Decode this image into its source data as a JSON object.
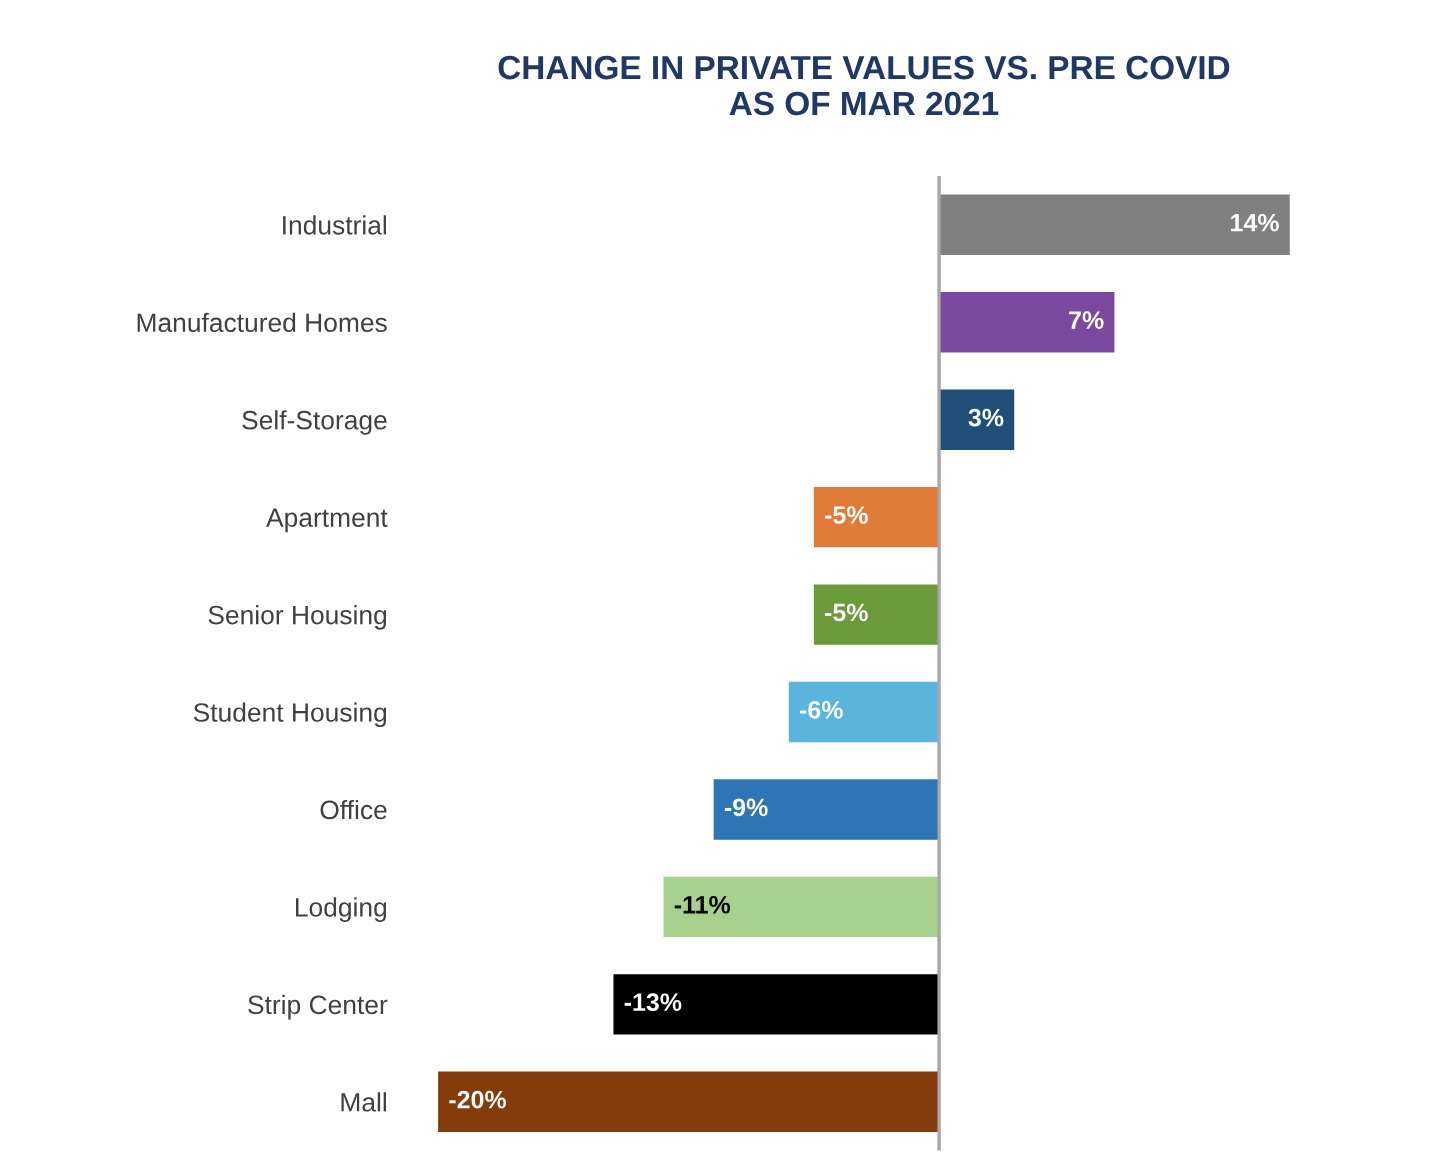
{
  "chart_data": {
    "type": "bar",
    "orientation": "horizontal",
    "title": "CHANGE IN PRIVATE VALUES VS. PRE COVID\nAS OF MAR 2021",
    "categories": [
      "Industrial",
      "Manufactured Homes",
      "Self-Storage",
      "Apartment",
      "Senior Housing",
      "Student Housing",
      "Office",
      "Lodging",
      "Strip Center",
      "Mall"
    ],
    "values": [
      14,
      7,
      3,
      -5,
      -5,
      -6,
      -9,
      -11,
      -13,
      -20
    ],
    "colors": [
      "#808080",
      "#7b4a9e",
      "#1f4e79",
      "#e07b39",
      "#6a9a3a",
      "#5ab4dc",
      "#2e75b6",
      "#a9d18e",
      "#000000",
      "#843c0c"
    ],
    "value_labels": [
      "14%",
      "7%",
      "3%",
      "-5%",
      "-5%",
      "-6%",
      "-9%",
      "-11%",
      "-13%",
      "-20%"
    ],
    "grid": false,
    "legend": false,
    "tick_labels": "y"
  }
}
